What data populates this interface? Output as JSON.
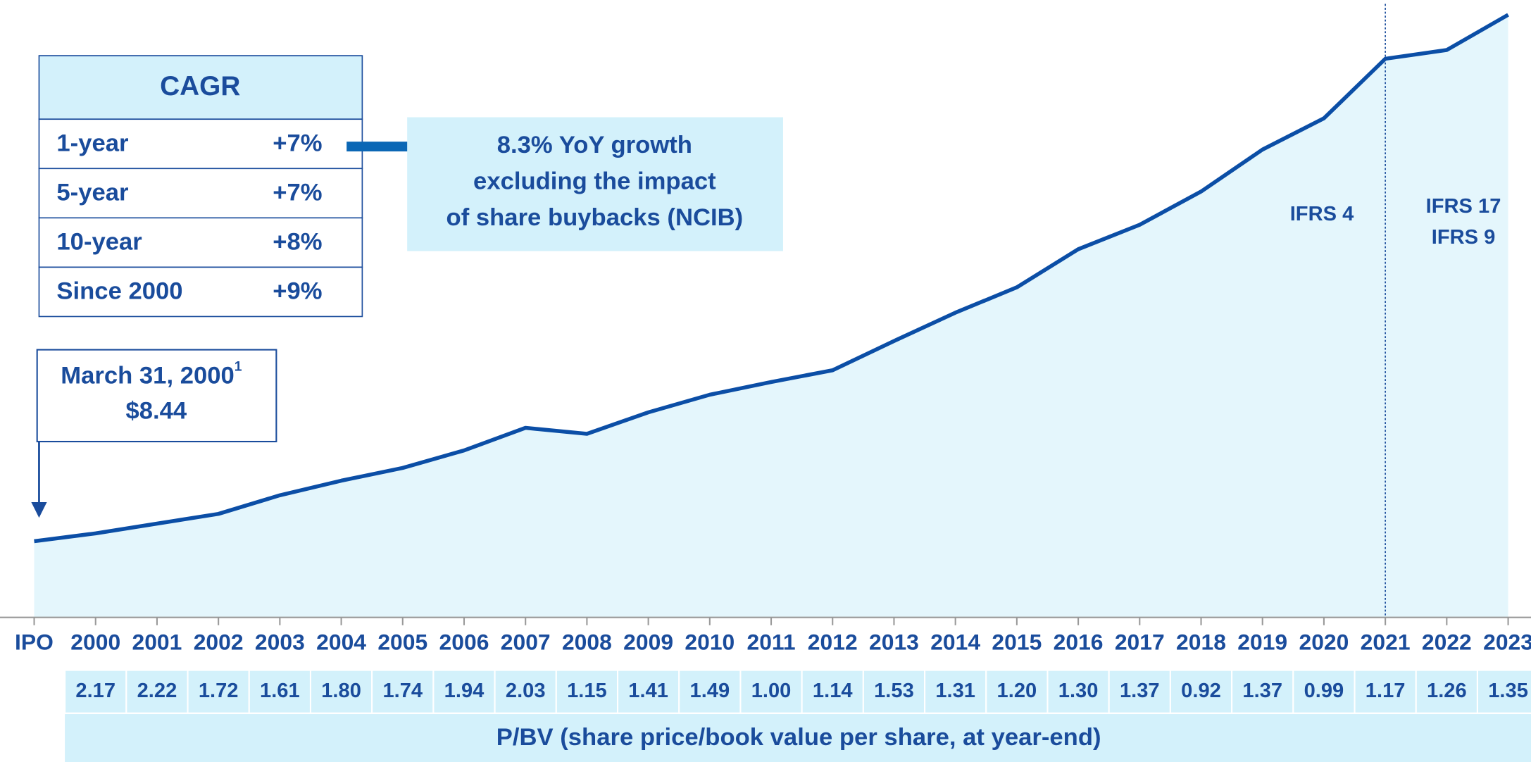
{
  "chart_data": {
    "type": "area",
    "categories": [
      "IPO",
      "2000",
      "2001",
      "2002",
      "2003",
      "2004",
      "2005",
      "2006",
      "2007",
      "2008",
      "2009",
      "2010",
      "2011",
      "2012",
      "2013",
      "2014",
      "2015",
      "2016",
      "2017",
      "2018",
      "2019",
      "2020",
      "2021",
      "2022",
      "2023"
    ],
    "values": [
      8.44,
      9.31,
      10.39,
      11.47,
      13.53,
      15.15,
      16.56,
      18.5,
      21.0,
      20.34,
      22.72,
      24.67,
      26.08,
      27.38,
      30.62,
      33.76,
      36.57,
      40.79,
      43.5,
      47.18,
      51.83,
      55.29,
      61.89,
      62.86,
      66.76
    ],
    "color": "#0b4ea6",
    "fill": "#e4f6fc",
    "ylim": [
      0,
      68.4
    ],
    "divider_category": "2021",
    "regimes": [
      "IFRS 4",
      [
        "IFRS 17",
        "IFRS 9"
      ]
    ],
    "ipo_label": {
      "date": "March 31, 2000",
      "note": "1",
      "price": "$8.44"
    },
    "pbv": {
      "categories": [
        "2000",
        "2001",
        "2002",
        "2003",
        "2004",
        "2005",
        "2006",
        "2007",
        "2008",
        "2009",
        "2010",
        "2011",
        "2012",
        "2013",
        "2014",
        "2015",
        "2016",
        "2017",
        "2018",
        "2019",
        "2020",
        "2021",
        "2022",
        "2023"
      ],
      "values": [
        2.17,
        2.22,
        1.72,
        1.61,
        1.8,
        1.74,
        1.94,
        2.03,
        1.15,
        1.41,
        1.49,
        1.0,
        1.14,
        1.53,
        1.31,
        1.2,
        1.3,
        1.37,
        0.92,
        1.37,
        0.99,
        1.17,
        1.26,
        1.35
      ],
      "value_labels": [
        "2.17",
        "2.22",
        "1.72",
        "1.61",
        "1.80",
        "1.74",
        "1.94",
        "2.03",
        "1.15",
        "1.41",
        "1.49",
        "1.00",
        "1.14",
        "1.53",
        "1.31",
        "1.20",
        "1.30",
        "1.37",
        "0.92",
        "1.37",
        "0.99",
        "1.17",
        "1.26",
        "1.35"
      ],
      "caption": "P/BV (share price/book value per share, at year-end)"
    }
  },
  "cagr": {
    "title": "CAGR",
    "rows": [
      [
        "1-year",
        "+7%"
      ],
      [
        "5-year",
        "+7%"
      ],
      [
        "10-year",
        "+8%"
      ],
      [
        "Since 2000",
        "+9%"
      ]
    ]
  },
  "callout": [
    "8.3% YoY growth",
    "excluding the impact",
    "of share buybacks (NCIB)"
  ]
}
